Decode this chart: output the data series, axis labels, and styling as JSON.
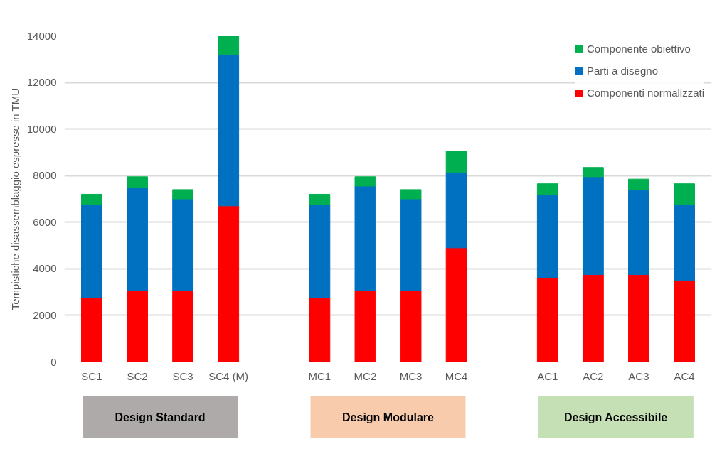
{
  "chart_data": {
    "type": "bar",
    "stacked": true,
    "ylabel": "Tempistiche disassemblaggio espresse in TMU",
    "categories": [
      "SC1",
      "SC2",
      "SC3",
      "SC4 (M)",
      null,
      "MC1",
      "MC2",
      "MC3",
      "MC4",
      null,
      "AC1",
      "AC2",
      "AC3",
      "AC4"
    ],
    "series": [
      {
        "name": "Componenti normalizzati",
        "color": "#ff0000",
        "values": [
          2750,
          3050,
          3050,
          6700,
          null,
          2750,
          3050,
          3050,
          4900,
          null,
          3600,
          3750,
          3750,
          3500
        ]
      },
      {
        "name": "Parti a disegno",
        "color": "#0070c0",
        "values": [
          4000,
          4450,
          3950,
          6500,
          null,
          4000,
          4500,
          3950,
          3250,
          null,
          3600,
          4200,
          3650,
          3250
        ]
      },
      {
        "name": "Componente obiettivo",
        "color": "#00b050",
        "values": [
          450,
          450,
          400,
          800,
          null,
          450,
          400,
          400,
          900,
          null,
          450,
          400,
          450,
          900
        ]
      }
    ],
    "ylim": [
      0,
      14000
    ],
    "yticks": [
      0,
      2000,
      4000,
      6000,
      8000,
      10000,
      12000,
      14000
    ],
    "grid": "y",
    "legend": "top right",
    "annotations": [
      "Design Standard",
      "Design Modulare",
      "Design Accessibile"
    ]
  }
}
